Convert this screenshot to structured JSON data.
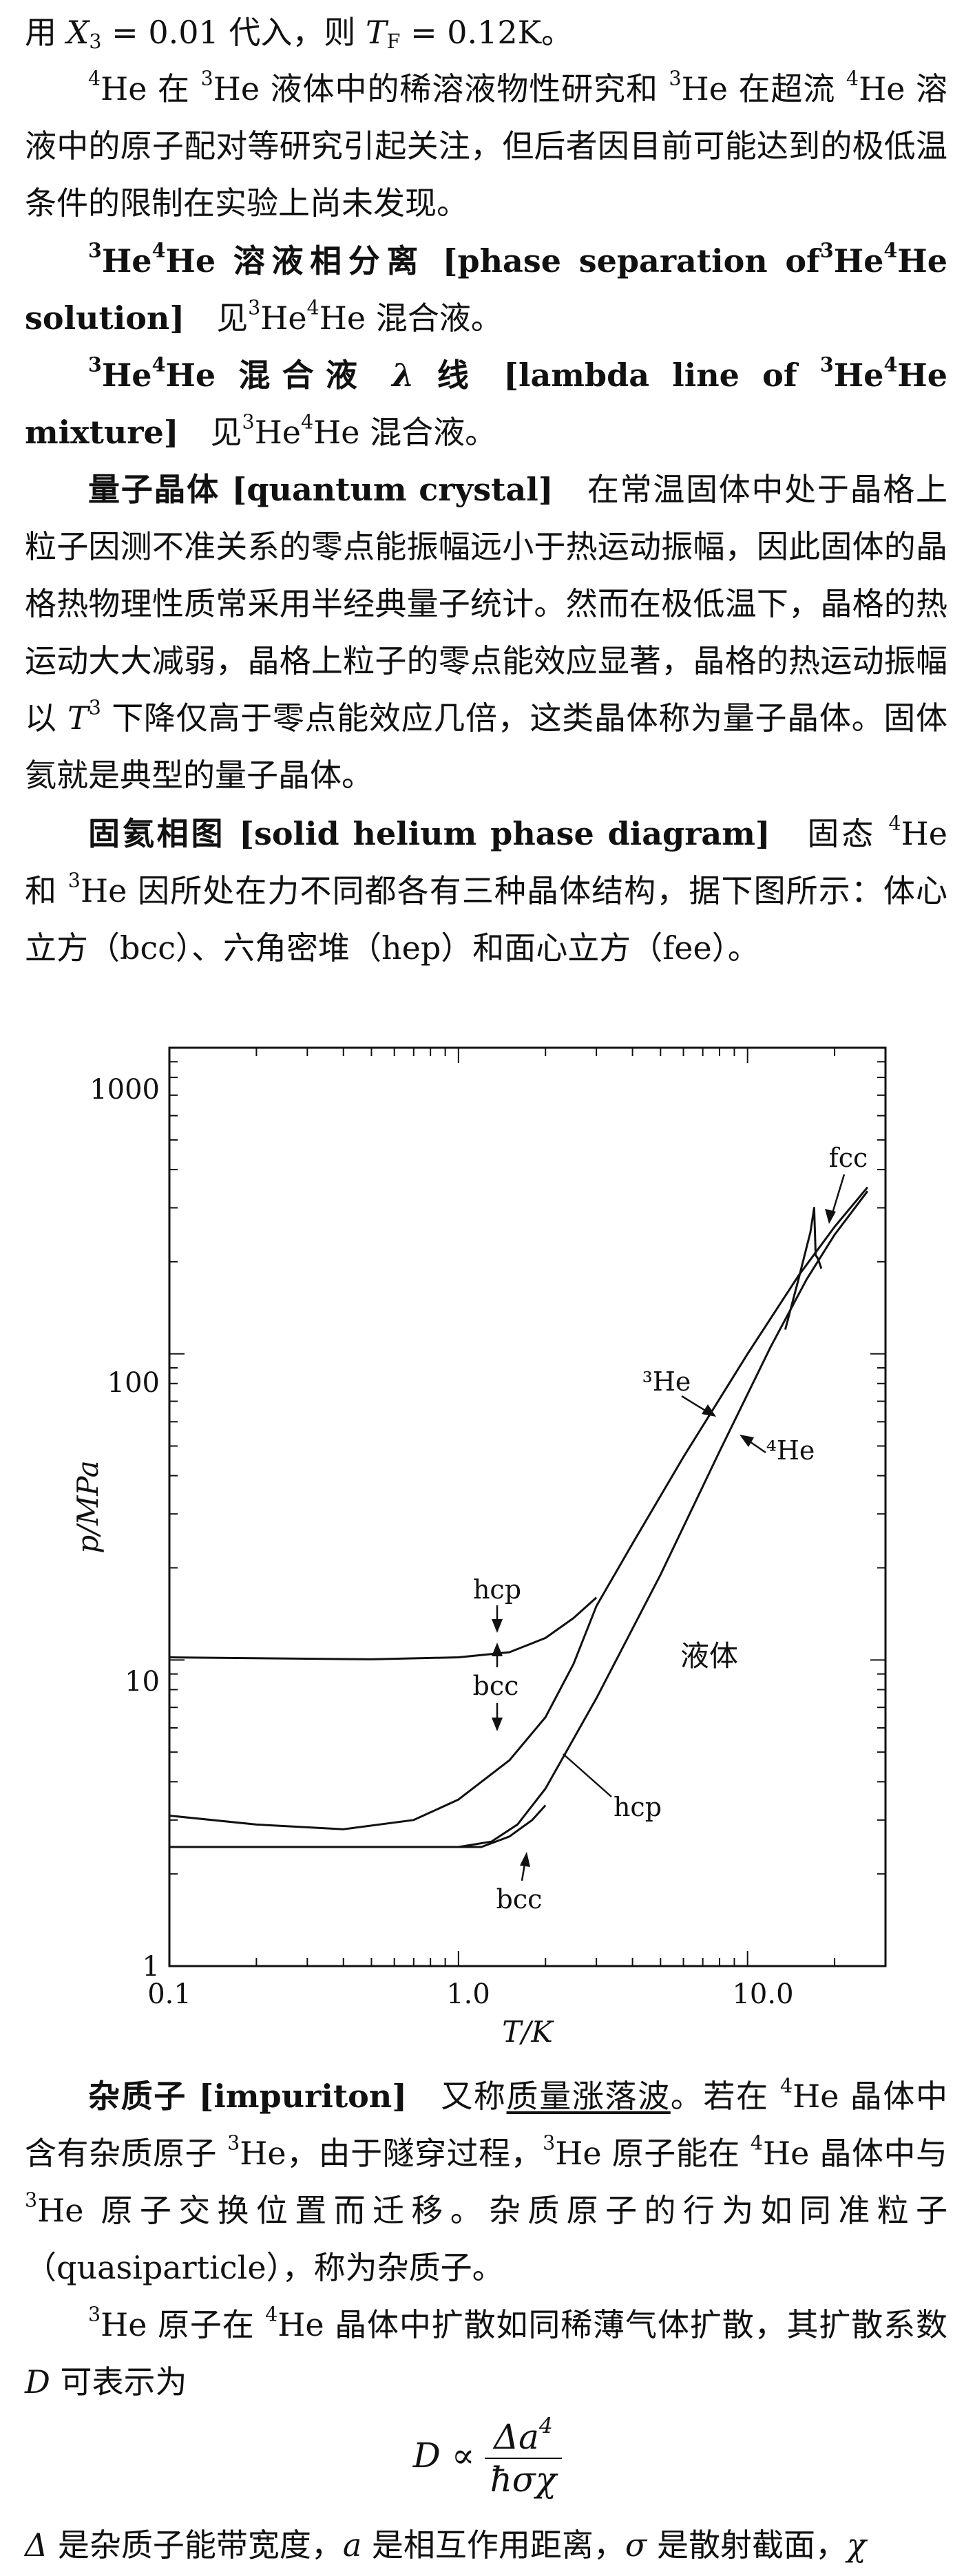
{
  "para_top_line": {
    "t1": "用 ",
    "var": "X",
    "sub": "3",
    "t2": " = 0.01 代入，则 ",
    "var2": "T",
    "sub2": "F",
    "t3": " = 0.12K。"
  },
  "para_he_note": {
    "s1": "4",
    "t1": "He 在 ",
    "s2": "3",
    "t2": "He 液体中的稀溶液物性研究和 ",
    "s3": "3",
    "t3": "He 在超流 ",
    "s4": "4",
    "t4": "He 溶液中的原子配对等研究引起关注，但后者因目前可能达到的极低温条件的限制在实验上尚未发现。"
  },
  "entry_phase_sep": {
    "s1": "3",
    "h1": "He",
    "s2": "4",
    "h2": "He ",
    "title": "溶液相分离",
    "en": " [phase separation of",
    "s3": "3",
    "en2": "He",
    "s4": "4",
    "en3": "He solution]",
    "see": "　见",
    "s5": "3",
    "r1": "He",
    "s6": "4",
    "r2": "He 混合液。"
  },
  "entry_lambda": {
    "s1": "3",
    "h1": "He",
    "s2": "4",
    "h2": "He ",
    "title": "混合液 ",
    "lambda": "λ",
    "title2": " 线",
    "en": " [lambda line of ",
    "s3": "3",
    "en2": "He",
    "s4": "4",
    "en3": "He mixture]",
    "see": "　见",
    "s5": "3",
    "r1": "He",
    "s6": "4",
    "r2": "He 混合液。"
  },
  "entry_quantum_crystal": {
    "title": "量子晶体",
    "en": " [quantum crystal]",
    "t1": "　在常温固体中处于晶格上粒子因测不准关系的零点能振幅远小于热运动振幅，因此固体的晶格热物理性质常采用半经典量子统计。然而在极低温下，晶格的热运动大大减弱，晶格上粒子的零点能效应显著，晶格的热运动振幅以 ",
    "var": "T",
    "sup": "3",
    "t2": " 下降仅高于零点能效应几倍，这类晶体称为量子晶体。固体氦就是典型的量子晶体。"
  },
  "entry_solid_he": {
    "title": "固氦相图",
    "en": " [solid helium phase diagram]",
    "t1": "　固态 ",
    "s1": "4",
    "t2": "He 和 ",
    "s2": "3",
    "t3": "He 因所处在力不同都各有三种晶体结构，据下图所示：体心立方（bcc）、六角密堆（hep）和面心立方（fee）。"
  },
  "chart_data": {
    "type": "line",
    "xlabel": "T/K",
    "ylabel": "p/MPa",
    "xscale": "log",
    "yscale": "log",
    "xlim": [
      0.1,
      30
    ],
    "ylim": [
      1,
      1000
    ],
    "xticks": [
      "0.1",
      "1.0",
      "10.0"
    ],
    "yticks": [
      "1",
      "10",
      "100",
      "1000"
    ],
    "series": [
      {
        "values": [
          [
            0.1,
            10.2
          ],
          [
            0.5,
            10.05
          ],
          [
            1.0,
            10.2
          ],
          [
            1.5,
            10.6
          ],
          [
            2.0,
            11.8
          ],
          [
            2.5,
            13.7
          ],
          [
            3.0,
            16.0
          ]
        ]
      },
      {
        "values": [
          [
            0.1,
            3.1
          ],
          [
            0.2,
            2.9
          ],
          [
            0.4,
            2.8
          ],
          [
            0.7,
            3.0
          ],
          [
            1.0,
            3.5
          ],
          [
            1.5,
            4.7
          ],
          [
            2.0,
            6.5
          ],
          [
            2.5,
            9.7
          ],
          [
            3.0,
            15
          ],
          [
            4.0,
            24
          ],
          [
            6.0,
            46
          ],
          [
            10,
            100
          ],
          [
            15,
            180
          ],
          [
            20,
            260
          ],
          [
            26,
            350
          ]
        ]
      },
      {
        "values": [
          [
            0.1,
            2.45
          ],
          [
            0.5,
            2.45
          ],
          [
            1.0,
            2.45
          ],
          [
            1.3,
            2.55
          ],
          [
            1.6,
            2.9
          ],
          [
            2.0,
            3.8
          ],
          [
            3.0,
            7.5
          ],
          [
            5.0,
            19
          ],
          [
            8.0,
            48
          ],
          [
            12,
            105
          ],
          [
            16,
            175
          ],
          [
            20,
            245
          ],
          [
            26,
            340
          ]
        ]
      },
      {
        "values": [
          [
            0.1,
            2.45
          ],
          [
            1.0,
            2.45
          ],
          [
            1.2,
            2.45
          ],
          [
            1.5,
            2.65
          ],
          [
            1.8,
            3.0
          ],
          [
            2.0,
            3.35
          ]
        ]
      },
      {
        "values": [
          [
            13.5,
            120
          ],
          [
            15,
            175
          ],
          [
            16.5,
            250
          ],
          [
            17,
            300
          ],
          [
            17.2,
            210
          ],
          [
            17.5,
            205
          ],
          [
            18,
            190
          ]
        ]
      }
    ],
    "annotations": [
      "fcc",
      "³He",
      "⁴He",
      "hcp",
      "bcc",
      "液体",
      "hcp",
      "bcc"
    ]
  },
  "entry_impuriton": {
    "title": "杂质子",
    "en": " [impuriton]",
    "t1": "　又称",
    "link": "质量涨落波",
    "t2": "。若在 ",
    "s1": "4",
    "t3": "He 晶体中含有杂质原子 ",
    "s2": "3",
    "t4": "He，由于隧穿过程，",
    "s3": "3",
    "t5": "He 原子能在 ",
    "s4": "4",
    "t6": "He 晶体中与 ",
    "s5": "3",
    "t7": "He 原子交换位置而迁移。杂质原子的行为如同准粒子（quasiparticle），称为杂质子。"
  },
  "para_diffusion": {
    "s1": "3",
    "t1": "He 原子在 ",
    "s2": "4",
    "t2": "He 晶体中扩散如同稀薄气体扩散，其扩散系数 ",
    "var": "D",
    "t3": " 可表示为"
  },
  "formula": {
    "lhs": "D ∝",
    "num": "Δa",
    "num_sup": "4",
    "den": "ħσχ"
  },
  "para_bottom": {
    "v1": "Δ",
    "t1": " 是杂质子能带宽度，",
    "v2": "a",
    "t2": " 是相互作用距离，",
    "v3": "σ",
    "t3": " 是散射截面，",
    "v4": "χ"
  }
}
